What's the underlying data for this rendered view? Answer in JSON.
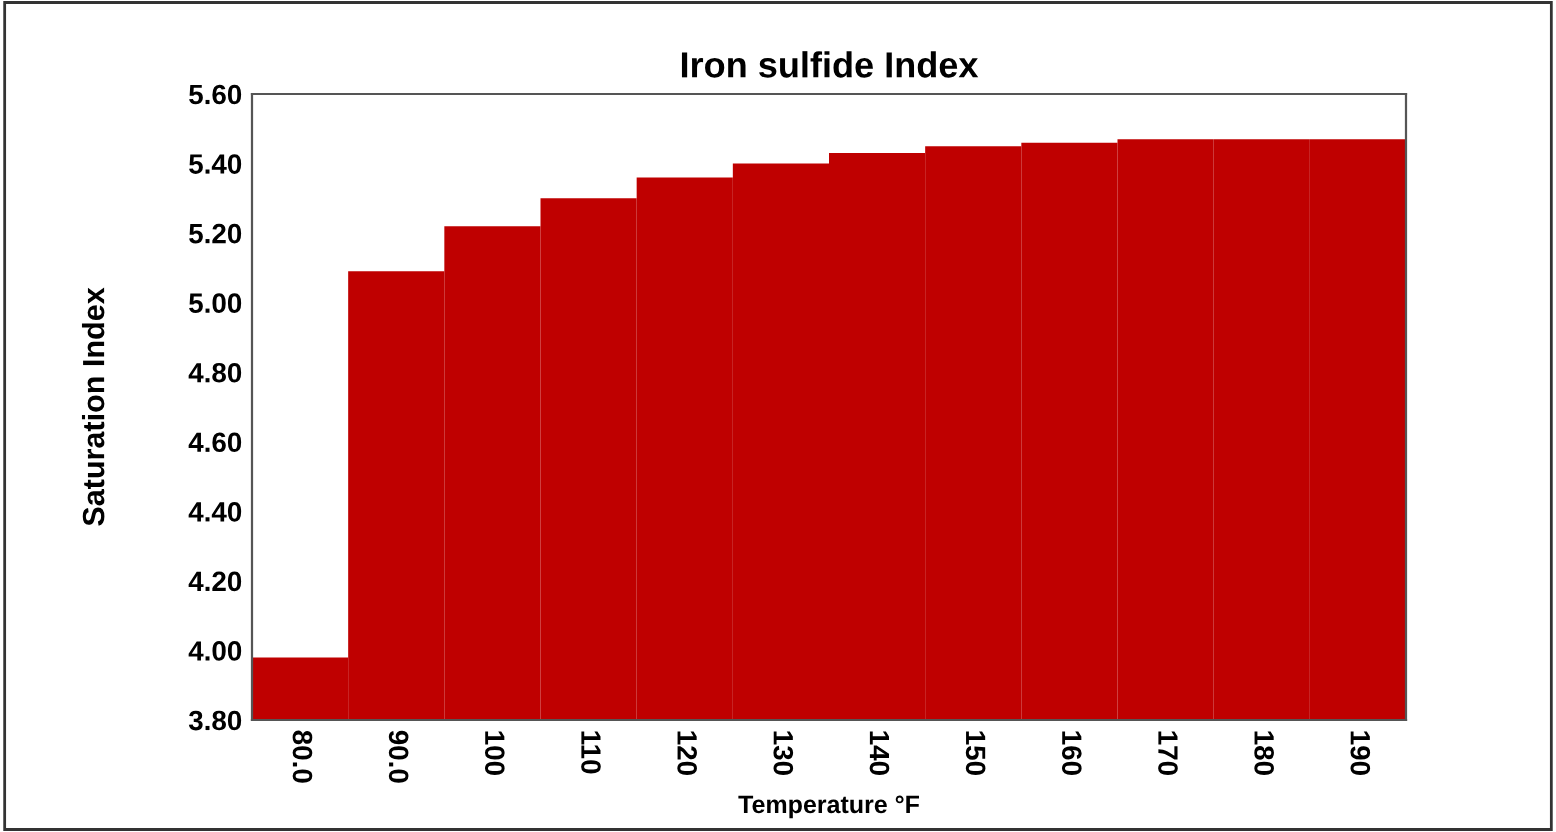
{
  "chart_data": {
    "type": "bar",
    "title": "Iron sulfide Index",
    "xlabel": "Temperature °F",
    "ylabel": "Saturation Index",
    "categories": [
      "80.0",
      "90.0",
      "100",
      "110",
      "120",
      "130",
      "140",
      "150",
      "160",
      "170",
      "180",
      "190"
    ],
    "values": [
      3.98,
      5.09,
      5.22,
      5.3,
      5.36,
      5.4,
      5.43,
      5.45,
      5.46,
      5.47,
      5.47,
      5.47
    ],
    "color": "#bf0000",
    "ylim": [
      3.8,
      5.6
    ],
    "yticks": [
      {
        "value": 3.8,
        "label": "3.80"
      },
      {
        "value": 4.0,
        "label": "4.00"
      },
      {
        "value": 4.2,
        "label": "4.20"
      },
      {
        "value": 4.4,
        "label": "4.40"
      },
      {
        "value": 4.6,
        "label": "4.60"
      },
      {
        "value": 4.8,
        "label": "4.80"
      },
      {
        "value": 5.0,
        "label": "5.00"
      },
      {
        "value": 5.2,
        "label": "5.20"
      },
      {
        "value": 5.4,
        "label": "5.40"
      },
      {
        "value": 5.6,
        "label": "5.60"
      }
    ],
    "grid": false
  }
}
